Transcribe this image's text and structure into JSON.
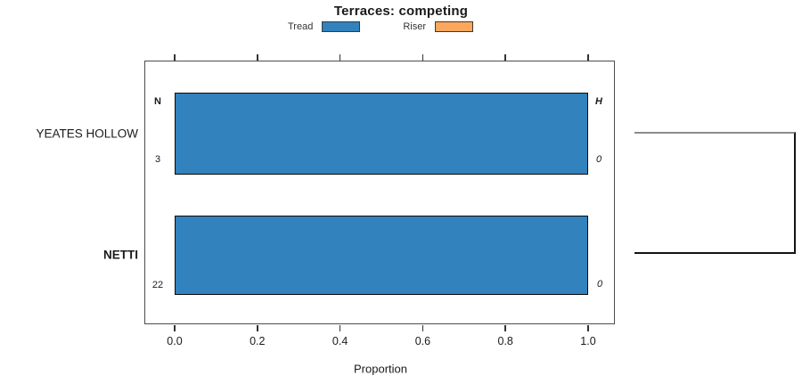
{
  "chart_data": {
    "type": "bar",
    "orientation": "horizontal",
    "title": "Terraces: competing",
    "xlabel": "Proportion",
    "xlim": [
      0,
      1
    ],
    "xticks": [
      0.0,
      0.2,
      0.4,
      0.6,
      0.8,
      1.0
    ],
    "xtick_labels": [
      "0.0",
      "0.2",
      "0.4",
      "0.6",
      "0.8",
      "1.0"
    ],
    "categories": [
      "YEATES HOLLOW",
      "NETTI"
    ],
    "series": [
      {
        "name": "Tread",
        "color": "#3182BD",
        "values": [
          1.0,
          1.0
        ]
      },
      {
        "name": "Riser",
        "color": "#FBA75D",
        "values": [
          0.0,
          0.0
        ]
      }
    ],
    "legend_position": "top",
    "grid": false,
    "annotations": {
      "col_left_header": "N",
      "col_right_header": "H",
      "n_values": [
        "3",
        "22"
      ],
      "h_values": [
        "0",
        "0"
      ]
    }
  }
}
